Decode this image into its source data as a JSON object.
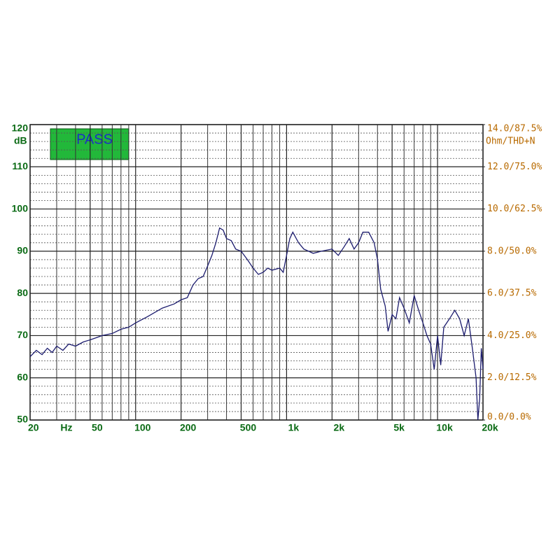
{
  "chart_data": {
    "type": "line",
    "annotation": "PASS",
    "ylabel": "dB",
    "y2label": "Ohm/THD+N",
    "xlabel": "Hz",
    "xscale": "log",
    "xlim": [
      20,
      20000
    ],
    "xticks": [
      20,
      {
        "value": 50,
        "label": "50"
      },
      100,
      200,
      500,
      {
        "value": 1000,
        "label": "1k"
      },
      {
        "value": 2000,
        "label": "2k"
      },
      {
        "value": 5000,
        "label": "5k"
      },
      {
        "value": 10000,
        "label": "10k"
      },
      {
        "value": 20000,
        "label": "20k"
      }
    ],
    "xminor": [
      30,
      40,
      60,
      70,
      80,
      90,
      300,
      400,
      600,
      700,
      800,
      900,
      3000,
      4000,
      6000,
      7000,
      8000,
      9000
    ],
    "ylim": [
      50,
      120
    ],
    "yticks": [
      50,
      60,
      70,
      80,
      90,
      100,
      110,
      120
    ],
    "yminor": [
      52,
      54,
      56,
      58,
      62,
      64,
      66,
      68,
      72,
      74,
      76,
      78,
      82,
      84,
      86,
      88,
      92,
      94,
      96,
      98,
      102,
      104,
      106,
      108,
      112,
      114,
      116,
      118
    ],
    "y2lim": [
      0,
      14
    ],
    "y2ticks": [
      {
        "value": 0,
        "label": "0.0/0.0%"
      },
      {
        "value": 2,
        "label": "2.0/12.5%"
      },
      {
        "value": 4,
        "label": "4.0/25.0%"
      },
      {
        "value": 6,
        "label": "6.0/37.5%"
      },
      {
        "value": 8,
        "label": "8.0/50.0%"
      },
      {
        "value": 10,
        "label": "10.0/62.5%"
      },
      {
        "value": 12,
        "label": "12.0/75.0%"
      },
      {
        "value": 14,
        "label": "14.0/87.5%"
      }
    ],
    "grid": true,
    "series": [
      {
        "color": "#1c1c6e",
        "x": [
          20,
          22,
          24,
          26,
          28,
          30,
          33,
          36,
          40,
          45,
          50,
          55,
          60,
          70,
          80,
          90,
          100,
          120,
          150,
          180,
          200,
          220,
          240,
          260,
          280,
          300,
          320,
          340,
          360,
          380,
          400,
          430,
          460,
          500,
          550,
          600,
          650,
          700,
          750,
          800,
          900,
          950,
          1000,
          1050,
          1100,
          1200,
          1300,
          1400,
          1500,
          1700,
          2000,
          2200,
          2400,
          2600,
          2800,
          3000,
          3200,
          3500,
          3800,
          4000,
          4200,
          4500,
          4700,
          5000,
          5300,
          5600,
          6000,
          6500,
          7000,
          7500,
          8000,
          8500,
          9000,
          9500,
          10000,
          10500,
          11000,
          12000,
          13000,
          14000,
          15000,
          16000,
          17000,
          18000,
          18500,
          19000,
          19500,
          20000
        ],
        "values": [
          65,
          66.5,
          65.5,
          67,
          66,
          67.5,
          66.5,
          68,
          67.5,
          68.5,
          69,
          69.5,
          70,
          70.5,
          71.5,
          72,
          73,
          74.5,
          76.5,
          77.5,
          78.5,
          79,
          82,
          83.5,
          84,
          86.5,
          89,
          92,
          95.5,
          95,
          93,
          92.5,
          90.5,
          90,
          88,
          86,
          84.5,
          85,
          86,
          85.5,
          86,
          85,
          89,
          93,
          94.5,
          92,
          90.5,
          90,
          89.5,
          90,
          90.5,
          89,
          91,
          93,
          90.5,
          92,
          94.5,
          94.5,
          92,
          88,
          81,
          77,
          71,
          75,
          74,
          79,
          76.5,
          73,
          79.5,
          76,
          73,
          70,
          68,
          62,
          70,
          63,
          72,
          74,
          76,
          74,
          70,
          74,
          67,
          60,
          50,
          55,
          67,
          62
        ]
      }
    ]
  }
}
